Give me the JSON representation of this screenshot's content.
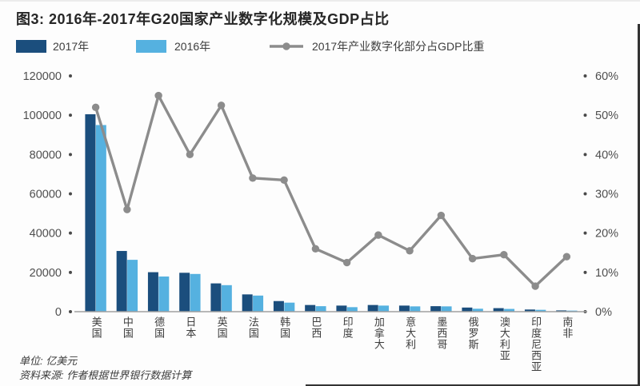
{
  "figure": {
    "title": "图3: 2016年-2017年G20国家产业数字化规模及GDP占比",
    "unit_note": "单位: 亿美元",
    "source_note": "资料来源: 作者根据世界银行数据计算"
  },
  "legend": {
    "series_2017": "2017年",
    "series_2016": "2016年",
    "line_series": "2017年产业数字化部分占GDP比重"
  },
  "colors": {
    "bar_2017": "#1b4e7d",
    "bar_2016": "#55b1e0",
    "line": "#8c8c8c",
    "axis_dot": "#4a4a4a",
    "baseline": "#a0a0a0"
  },
  "chart_data": {
    "type": "bar",
    "note": "grouped bars (left axis, 亿美元) + line (right axis, % of GDP)",
    "categories": [
      "美国",
      "中国",
      "德国",
      "日本",
      "英国",
      "法国",
      "韩国",
      "巴西",
      "印度",
      "加拿大",
      "意大利",
      "墨西哥",
      "俄罗斯",
      "澳大利亚",
      "印度尼西亚",
      "南非"
    ],
    "series": [
      {
        "name": "2017年",
        "kind": "bar",
        "axis": "left",
        "values": [
          100500,
          30900,
          20100,
          19800,
          14400,
          8800,
          5400,
          3400,
          3100,
          3400,
          3100,
          2800,
          2100,
          1800,
          1100,
          650
        ]
      },
      {
        "name": "2016年",
        "kind": "bar",
        "axis": "left",
        "values": [
          95000,
          26400,
          17900,
          19200,
          13500,
          8200,
          4600,
          2800,
          2300,
          3100,
          2700,
          2700,
          1500,
          1400,
          950,
          550
        ]
      },
      {
        "name": "2017年产业数字化部分占GDP比重",
        "kind": "line",
        "axis": "right",
        "values": [
          52,
          26,
          55,
          40,
          52.5,
          34,
          33.5,
          16,
          12.5,
          19.5,
          15.5,
          24.5,
          13.5,
          14.5,
          6.5,
          14
        ]
      }
    ],
    "left_axis": {
      "ticks": [
        0,
        20000,
        40000,
        60000,
        80000,
        100000,
        120000
      ],
      "max": 120000,
      "unit": "亿美元"
    },
    "right_axis": {
      "ticks": [
        0,
        10,
        20,
        30,
        40,
        50,
        60
      ],
      "tick_labels": [
        "0%",
        "10%",
        "20%",
        "30%",
        "40%",
        "50%",
        "60%"
      ],
      "max": 60
    },
    "grid": "off",
    "legend_position": "top-left"
  }
}
